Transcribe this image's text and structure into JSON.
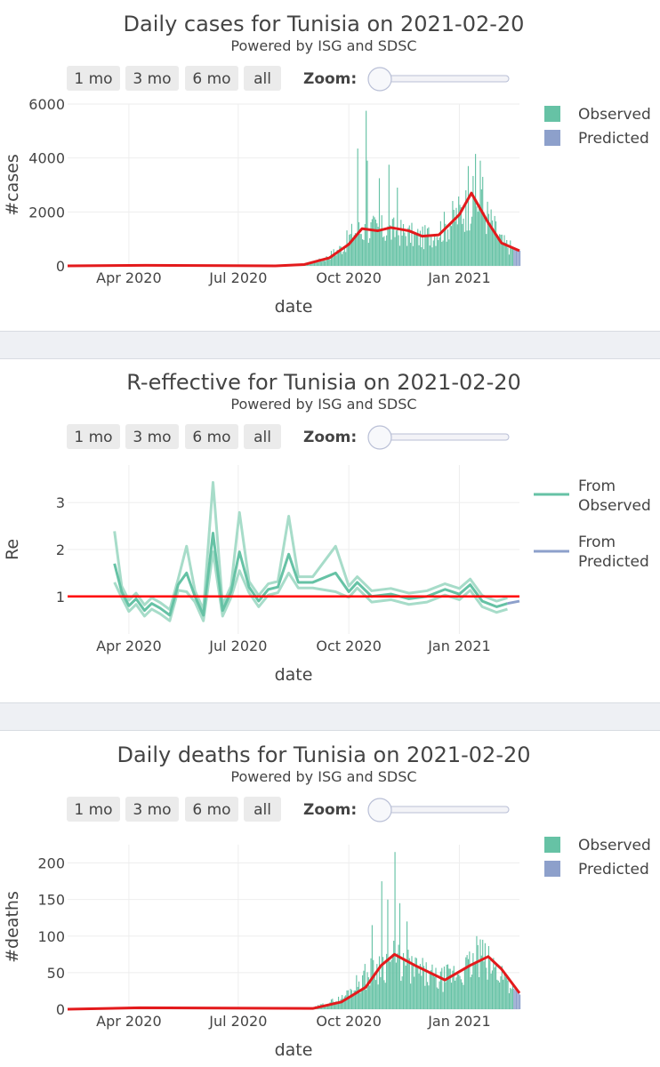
{
  "charts": [
    {
      "title": "Daily cases for Tunisia on 2021-02-20",
      "subtitle": "Powered by ISG and SDSC",
      "buttons": [
        "1 mo",
        "3 mo",
        "6 mo",
        "all"
      ],
      "zoom_label": "Zoom:",
      "xlabel": "date",
      "ylabel": "#cases",
      "x_ticks": [
        "Apr 2020",
        "Jul 2020",
        "Oct 2020",
        "Jan 2021"
      ],
      "y_ticks": [
        "0",
        "2000",
        "4000",
        "6000"
      ],
      "legend": [
        "Observed",
        "Predicted"
      ]
    },
    {
      "title": "R-effective for Tunisia on 2021-02-20",
      "subtitle": "Powered by ISG and SDSC",
      "buttons": [
        "1 mo",
        "3 mo",
        "6 mo",
        "all"
      ],
      "zoom_label": "Zoom:",
      "xlabel": "date",
      "ylabel": "Re",
      "x_ticks": [
        "Apr 2020",
        "Jul 2020",
        "Oct 2020",
        "Jan 2021"
      ],
      "y_ticks": [
        "1",
        "2",
        "3"
      ],
      "legend": [
        [
          "From",
          "Observed"
        ],
        [
          "From",
          "Predicted"
        ]
      ]
    },
    {
      "title": "Daily deaths for Tunisia on 2021-02-20",
      "subtitle": "Powered by ISG and SDSC",
      "buttons": [
        "1 mo",
        "3 mo",
        "6 mo",
        "all"
      ],
      "zoom_label": "Zoom:",
      "xlabel": "date",
      "ylabel": "#deaths",
      "x_ticks": [
        "Apr 2020",
        "Jul 2020",
        "Oct 2020",
        "Jan 2021"
      ],
      "y_ticks": [
        "0",
        "50",
        "100",
        "150",
        "200"
      ],
      "legend": [
        "Observed",
        "Predicted"
      ]
    }
  ],
  "chart_data": [
    {
      "type": "bar",
      "title": "Daily cases for Tunisia on 2021-02-20",
      "xlabel": "date",
      "ylabel": "#cases",
      "ylim": [
        0,
        6000
      ],
      "x_range": [
        "2020-02-10",
        "2021-02-20"
      ],
      "colors": {
        "observed": "#66c2a5",
        "predicted": "#8da0cb",
        "smooth": "#e31a1c"
      },
      "series": [
        {
          "name": "Observed",
          "type": "bar",
          "anchors": [
            [
              "2020-02-10",
              0
            ],
            [
              "2020-08-01",
              0
            ],
            [
              "2020-08-25",
              60
            ],
            [
              "2020-09-10",
              250
            ],
            [
              "2020-09-25",
              700
            ],
            [
              "2020-10-05",
              1300
            ],
            [
              "2020-10-20",
              1400
            ],
            [
              "2020-11-10",
              1300
            ],
            [
              "2020-12-01",
              1050
            ],
            [
              "2020-12-20",
              1500
            ],
            [
              "2021-01-05",
              2200
            ],
            [
              "2021-01-15",
              2500
            ],
            [
              "2021-01-25",
              1800
            ],
            [
              "2021-02-05",
              900
            ],
            [
              "2021-02-14",
              650
            ]
          ],
          "spikes": [
            [
              "2020-10-08",
              4350
            ],
            [
              "2020-10-15",
              5750
            ],
            [
              "2020-10-16",
              3900
            ],
            [
              "2020-10-26",
              3250
            ],
            [
              "2020-11-03",
              3750
            ],
            [
              "2020-11-10",
              2900
            ],
            [
              "2021-01-08",
              3700
            ],
            [
              "2021-01-14",
              4150
            ],
            [
              "2021-01-18",
              3900
            ],
            [
              "2021-01-20",
              3300
            ]
          ]
        },
        {
          "name": "Predicted",
          "type": "bar",
          "anchors": [
            [
              "2021-02-15",
              650
            ],
            [
              "2021-02-20",
              560
            ]
          ]
        },
        {
          "type": "line",
          "points": [
            [
              "2020-02-10",
              0
            ],
            [
              "2020-04-15",
              20
            ],
            [
              "2020-08-01",
              0
            ],
            [
              "2020-08-25",
              50
            ],
            [
              "2020-09-15",
              300
            ],
            [
              "2020-10-01",
              800
            ],
            [
              "2020-10-12",
              1380
            ],
            [
              "2020-10-25",
              1300
            ],
            [
              "2020-11-05",
              1420
            ],
            [
              "2020-11-20",
              1300
            ],
            [
              "2020-12-01",
              1100
            ],
            [
              "2020-12-15",
              1150
            ],
            [
              "2021-01-01",
              1900
            ],
            [
              "2021-01-11",
              2700
            ],
            [
              "2021-01-25",
              1600
            ],
            [
              "2021-02-05",
              850
            ],
            [
              "2021-02-20",
              560
            ]
          ]
        }
      ]
    },
    {
      "type": "line",
      "title": "R-effective for Tunisia on 2021-02-20",
      "xlabel": "date",
      "ylabel": "Re",
      "ylim": [
        0.2,
        3.8
      ],
      "x_range": [
        "2020-02-10",
        "2021-02-20"
      ],
      "colors": {
        "observed": "#66c2a5",
        "band": "#a7dcc9",
        "predicted": "#8da0cb",
        "threshold": "#ff0000"
      },
      "threshold": 1,
      "series": [
        {
          "name": "From Observed",
          "points": [
            [
              "2020-03-20",
              1.7
            ],
            [
              "2020-03-26",
              1.1
            ],
            [
              "2020-04-01",
              0.8
            ],
            [
              "2020-04-07",
              0.95
            ],
            [
              "2020-04-14",
              0.7
            ],
            [
              "2020-04-20",
              0.85
            ],
            [
              "2020-04-27",
              0.75
            ],
            [
              "2020-05-05",
              0.6
            ],
            [
              "2020-05-12",
              1.25
            ],
            [
              "2020-05-19",
              1.5
            ],
            [
              "2020-05-26",
              1.0
            ],
            [
              "2020-06-02",
              0.6
            ],
            [
              "2020-06-10",
              2.35
            ],
            [
              "2020-06-18",
              0.7
            ],
            [
              "2020-06-25",
              1.1
            ],
            [
              "2020-07-02",
              1.95
            ],
            [
              "2020-07-10",
              1.2
            ],
            [
              "2020-07-18",
              0.9
            ],
            [
              "2020-07-26",
              1.15
            ],
            [
              "2020-08-03",
              1.2
            ],
            [
              "2020-08-12",
              1.9
            ],
            [
              "2020-08-20",
              1.3
            ],
            [
              "2020-09-01",
              1.3
            ],
            [
              "2020-09-20",
              1.5
            ],
            [
              "2020-10-01",
              1.1
            ],
            [
              "2020-10-08",
              1.3
            ],
            [
              "2020-10-20",
              1.0
            ],
            [
              "2020-11-05",
              1.05
            ],
            [
              "2020-11-20",
              0.95
            ],
            [
              "2020-12-05",
              1.0
            ],
            [
              "2020-12-20",
              1.15
            ],
            [
              "2021-01-01",
              1.05
            ],
            [
              "2021-01-10",
              1.25
            ],
            [
              "2021-01-20",
              0.9
            ],
            [
              "2021-02-01",
              0.78
            ],
            [
              "2021-02-10",
              0.85
            ]
          ]
        },
        {
          "name": "From Predicted",
          "points": [
            [
              "2021-02-10",
              0.85
            ],
            [
              "2021-02-20",
              0.9
            ]
          ]
        }
      ]
    },
    {
      "type": "bar",
      "title": "Daily deaths for Tunisia on 2021-02-20",
      "xlabel": "date",
      "ylabel": "#deaths",
      "ylim": [
        0,
        225
      ],
      "x_range": [
        "2020-02-10",
        "2021-02-20"
      ],
      "colors": {
        "observed": "#66c2a5",
        "predicted": "#8da0cb",
        "smooth": "#e31a1c"
      },
      "series": [
        {
          "name": "Observed",
          "type": "bar",
          "anchors": [
            [
              "2020-02-10",
              0
            ],
            [
              "2020-04-05",
              2
            ],
            [
              "2020-09-01",
              2
            ],
            [
              "2020-09-25",
              15
            ],
            [
              "2020-10-10",
              40
            ],
            [
              "2020-10-25",
              60
            ],
            [
              "2020-11-05",
              70
            ],
            [
              "2020-11-25",
              55
            ],
            [
              "2020-12-15",
              40
            ],
            [
              "2021-01-05",
              55
            ],
            [
              "2021-01-18",
              70
            ],
            [
              "2021-02-05",
              50
            ],
            [
              "2021-02-14",
              30
            ]
          ],
          "spikes": [
            [
              "2020-10-20",
              115
            ],
            [
              "2020-10-28",
              175
            ],
            [
              "2020-11-02",
              150
            ],
            [
              "2020-11-08",
              215
            ],
            [
              "2020-11-12",
              145
            ],
            [
              "2020-11-18",
              120
            ],
            [
              "2021-01-15",
              100
            ],
            [
              "2021-01-20",
              95
            ]
          ]
        },
        {
          "name": "Predicted",
          "type": "bar",
          "anchors": [
            [
              "2021-02-15",
              28
            ],
            [
              "2021-02-20",
              20
            ]
          ]
        },
        {
          "type": "line",
          "points": [
            [
              "2020-02-10",
              0
            ],
            [
              "2020-04-10",
              2
            ],
            [
              "2020-09-01",
              1
            ],
            [
              "2020-09-25",
              10
            ],
            [
              "2020-10-15",
              30
            ],
            [
              "2020-10-28",
              60
            ],
            [
              "2020-11-08",
              75
            ],
            [
              "2020-11-25",
              60
            ],
            [
              "2020-12-20",
              40
            ],
            [
              "2021-01-10",
              60
            ],
            [
              "2021-01-25",
              72
            ],
            [
              "2021-02-05",
              55
            ],
            [
              "2021-02-20",
              22
            ]
          ]
        }
      ]
    }
  ]
}
